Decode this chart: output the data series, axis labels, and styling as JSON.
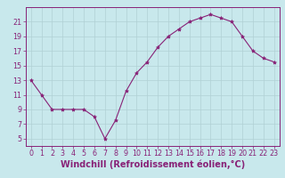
{
  "x": [
    0,
    1,
    2,
    3,
    4,
    5,
    6,
    7,
    8,
    9,
    10,
    11,
    12,
    13,
    14,
    15,
    16,
    17,
    18,
    19,
    20,
    21,
    22,
    23
  ],
  "y": [
    13,
    11,
    9,
    9,
    9,
    9,
    8,
    5,
    7.5,
    11.5,
    14,
    15.5,
    17.5,
    19,
    20,
    21,
    21.5,
    22,
    21.5,
    21,
    19,
    17,
    16,
    15.5
  ],
  "line_color": "#882277",
  "marker_color": "#882277",
  "bg_color": "#c8e8ec",
  "grid_color": "#b0d0d4",
  "xlabel": "Windchill (Refroidissement éolien,°C)",
  "xlabel_color": "#882277",
  "xlim": [
    -0.5,
    23.5
  ],
  "ylim": [
    4,
    23
  ],
  "yticks": [
    5,
    7,
    9,
    11,
    13,
    15,
    17,
    19,
    21
  ],
  "xticks": [
    0,
    1,
    2,
    3,
    4,
    5,
    6,
    7,
    8,
    9,
    10,
    11,
    12,
    13,
    14,
    15,
    16,
    17,
    18,
    19,
    20,
    21,
    22,
    23
  ],
  "tick_color": "#882277",
  "tick_label_fontsize": 5.8,
  "xlabel_fontsize": 7.0
}
